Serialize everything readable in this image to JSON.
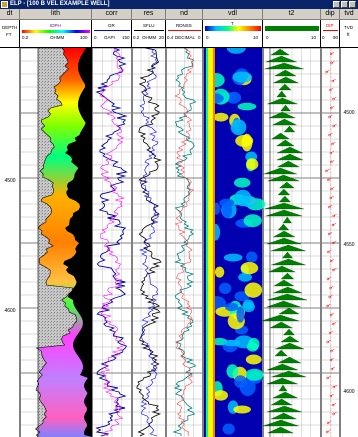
{
  "window": {
    "title": "ELP - [100 B VEL EXAMPLE WELL]",
    "accent": "#0a246a"
  },
  "tracks": [
    {
      "key": "dt",
      "label": "dt"
    },
    {
      "key": "lith",
      "label": "lith"
    },
    {
      "key": "corr",
      "label": "corr"
    },
    {
      "key": "res",
      "label": "res"
    },
    {
      "key": "nd",
      "label": "nd"
    },
    {
      "key": "vdl",
      "label": "vdl"
    },
    {
      "key": "t2",
      "label": "t2"
    },
    {
      "key": "dip",
      "label": "dip"
    },
    {
      "key": "tvd",
      "label": "tvd"
    }
  ],
  "scales": {
    "depth": {
      "line1": "DEPTH",
      "line2": "FT"
    },
    "lith": {
      "curve": "IDPH",
      "min": "0.2",
      "unit": "OHMM",
      "max": "100",
      "color": "#ff00ff"
    },
    "corr": {
      "curve": "GR",
      "unit": "GAPI",
      "min": "0",
      "max": "150",
      "color": "#0000ff"
    },
    "res": {
      "curve": "SFLU",
      "min": "0.2",
      "unit": "OHMM",
      "max": "20",
      "color": "#000000"
    },
    "nd": {
      "curve": "RDNSS",
      "min": "0.4",
      "unit": "DECIMAL",
      "max": "0",
      "color": "#ff0000"
    },
    "vdl": {
      "min": "0",
      "max": "10",
      "label": "T"
    },
    "t2": {
      "min": "0",
      "max": "10"
    },
    "dip": {
      "curve": "DIP",
      "min": "0",
      "max": "90",
      "color": "#ff0000"
    },
    "tvd": {
      "line1": "TVD",
      "line2": "ft"
    }
  },
  "depth_labels": [
    "4500",
    "4600"
  ],
  "tvd_labels": [
    "4500",
    "4550",
    "4600"
  ],
  "colors": {
    "shale": "#b8b8b8",
    "sand": "#ffc020",
    "gr": "#0000a0",
    "res": "#000000",
    "nd": "#008080",
    "vdl_bg": "#0000b0",
    "t2": "#006000",
    "dip": "#ff0000"
  }
}
